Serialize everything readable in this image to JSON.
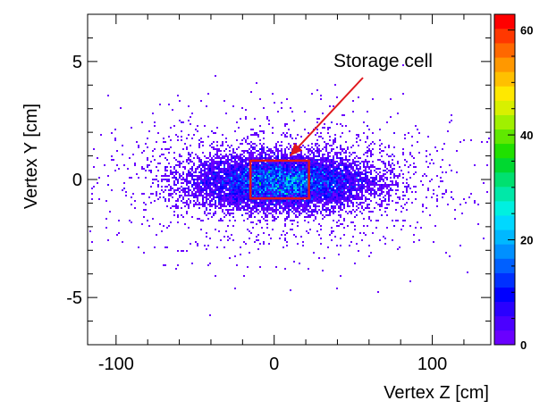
{
  "chart_data": {
    "type": "heatmap",
    "xlabel": "Vertex Z [cm]",
    "ylabel": "Vertex Y [cm]",
    "xlim": [
      -118,
      137
    ],
    "ylim": [
      -7,
      7
    ],
    "x_ticks": [
      -100,
      0,
      100
    ],
    "x_tick_labels": [
      "-100",
      "0",
      "100"
    ],
    "y_ticks": [
      5,
      0,
      -5
    ],
    "y_tick_labels": [
      "5",
      "0",
      "-5"
    ],
    "zlim": [
      0,
      63
    ],
    "z_ticks": [
      60,
      40,
      20,
      0
    ],
    "z_tick_labels": [
      "60",
      "40",
      "20",
      "0"
    ],
    "grid": false,
    "distribution": {
      "description_values": "2D vertex distribution, dense core near z 0 to 20 cm, y about 0 cm; spread sigma_z about 40 cm, sigma_y about 0.7 cm",
      "peak_z": 5,
      "peak_y": -0.1,
      "peak_count": 62
    },
    "annotation": {
      "text": "Storage cell",
      "box_z": [
        -15,
        22
      ],
      "box_y": [
        -0.8,
        0.8
      ],
      "color": "#e0181e",
      "arrow_to": [
        10,
        1.0
      ]
    },
    "palette_colors": [
      "#6a00ff",
      "#4b00ff",
      "#2a00ff",
      "#0000ff",
      "#0030ff",
      "#0060ff",
      "#0090ff",
      "#00b8ff",
      "#00d8ff",
      "#00f0e0",
      "#00e8a8",
      "#00e070",
      "#00d830",
      "#20e000",
      "#60e800",
      "#a0f000",
      "#d8f000",
      "#ffe800",
      "#ffc000",
      "#ff9800",
      "#ff6800",
      "#ff3800",
      "#ff0000"
    ]
  }
}
